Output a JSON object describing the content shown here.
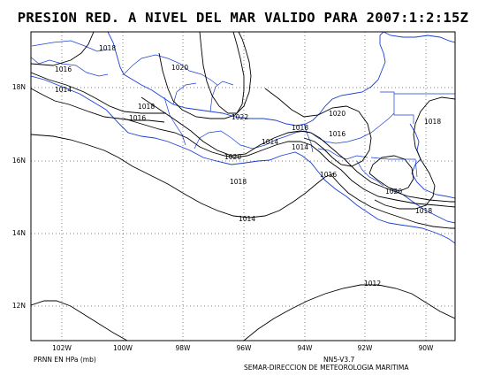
{
  "title": "PRESION RED. A NIVEL DEL MAR VALIDO PARA 2007:1:2:15Z",
  "lat_labels": [
    "18N",
    "16N",
    "14N",
    "12N"
  ],
  "lon_labels": [
    "102W",
    "100W",
    "98W",
    "96W",
    "94W",
    "92W",
    "90W"
  ],
  "footer": {
    "units": "PRNN EN HPa (mb)",
    "model": "NN5-V3.7",
    "agency": "SEMAR-DIRECCION DE METEOROLOGIA MARITIMA"
  },
  "isobar_labels": [
    "1018",
    "1016",
    "1014",
    "1020",
    "1018",
    "1016",
    "1022",
    "1020",
    "1018",
    "1016",
    "1014",
    "1020",
    "1018",
    "1016",
    "1014",
    "1018",
    "1020",
    "1018",
    "1014",
    "1012"
  ],
  "colors": {
    "coastline": "#1a3fd6",
    "isobar": "#000000",
    "grid": "#000000"
  }
}
